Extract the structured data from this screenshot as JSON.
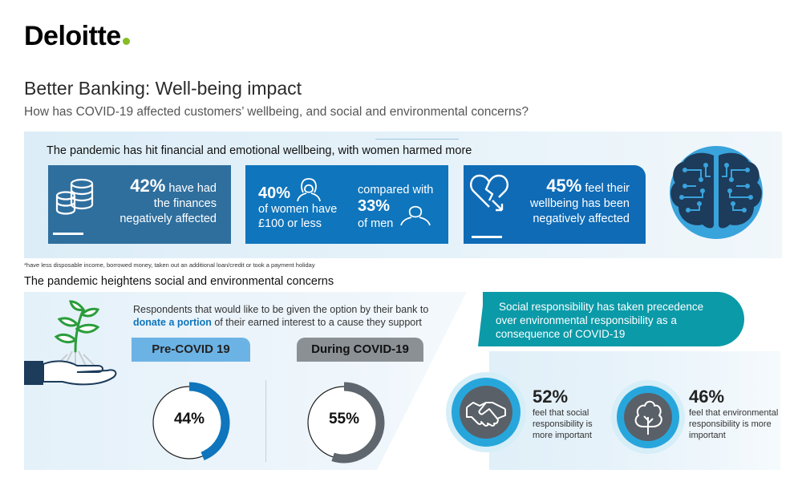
{
  "brand": {
    "name": "Deloitte",
    "accent": "#86bc25"
  },
  "header": {
    "title": "Better Banking: Well-being impact",
    "subtitle": "How has COVID-19 affected customers’ wellbeing, and social and environmental concerns?"
  },
  "section1": {
    "heading": "The pandemic has hit financial and emotional wellbeing, with women harmed more",
    "card1": {
      "pct": "42%",
      "line1": "have had",
      "line2": "the finances",
      "line3": "negatively affected",
      "icon": "coins-icon"
    },
    "card2": {
      "women_pct": "40%",
      "women_line1": "of women have",
      "women_line2": "£100 or less",
      "compared": "compared with",
      "men_pct": "33%",
      "men_line": "of men",
      "women_icon": "woman-icon",
      "men_icon": "man-icon"
    },
    "card3": {
      "pct": "45%",
      "line1": "feel their",
      "line2": "wellbeing has been",
      "line3": "negatively affected",
      "icon": "broken-heart-icon"
    },
    "brain_icon": "brain-circuit-icon",
    "footnote": "*have less disposable income, borrowed money, taken out an additional loan/credit or took a payment holiday"
  },
  "section2": {
    "heading": "The pandemic heightens social and environmental concerns",
    "respondents_pre": "Respondents that would like to be given the option by their bank to",
    "respondents_hl": "donate a portion",
    "respondents_post": "of their earned interest to a cause they support",
    "pre_label": "Pre-COVID 19",
    "during_label": "During COVID-19",
    "pre_pct": "44%",
    "during_pct": "55%",
    "pre_value": 44,
    "during_value": 55,
    "colors": {
      "pre": "#0f75bc",
      "during": "#5f666d"
    },
    "plant_icon": "plant-in-hand-icon"
  },
  "section3": {
    "banner_line1": "Social responsibility has taken precedence",
    "banner_line2": "over environmental responsibility as a",
    "banner_line3": "consequence of COVID-19",
    "social_pct": "52%",
    "social_line1": "feel that social",
    "social_line2": "responsibility is",
    "social_line3": "more important",
    "env_pct": "46%",
    "env_line1": "feel that environmental",
    "env_line2": "responsibility is more",
    "env_line3": "important",
    "social_icon": "handshake-icon",
    "env_icon": "tree-icon"
  }
}
